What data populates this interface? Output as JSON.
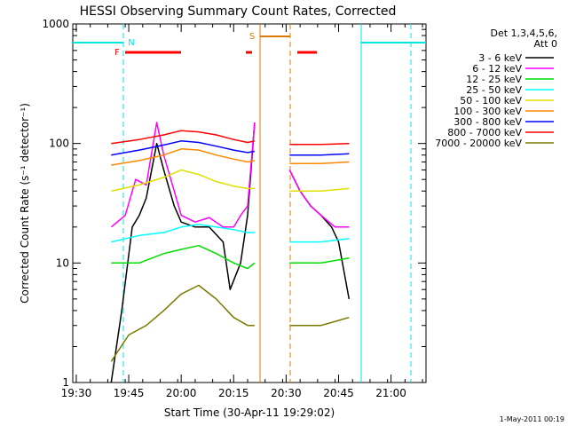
{
  "chart_data": {
    "type": "line",
    "title": "HESSI Observing Summary Count Rates, Corrected",
    "xlabel": "Start Time (30-Apr-11 19:29:02)",
    "ylabel": "Corrected Count Rate (s⁻¹ detector⁻¹)",
    "x_start": "19:29:02",
    "x_range": [
      "19:29",
      "21:10"
    ],
    "x_ticks": [
      "19:30",
      "19:45",
      "20:00",
      "20:15",
      "20:30",
      "20:45",
      "21:00"
    ],
    "y_scale": "log",
    "ylim": [
      1,
      1000
    ],
    "y_ticks": [
      "1",
      "10",
      "100",
      "1000"
    ],
    "footer": "1-May-2011 00:19",
    "legend": {
      "header": [
        "Det 1,3,4,5,6,",
        "Att 0"
      ],
      "position": "right"
    },
    "flags": [
      {
        "label": "N",
        "color": "#00e5e5"
      },
      {
        "label": "F",
        "color": "#ff0000"
      },
      {
        "label": "S",
        "color": "#e07800"
      }
    ],
    "series": [
      {
        "name": "3 - 6 keV",
        "color": "#000000",
        "x": [
          "19:40",
          "19:43",
          "19:46",
          "19:48",
          "19:50",
          "19:53",
          "19:55",
          "19:58",
          "20:00",
          "20:04",
          "20:08",
          "20:12",
          "20:14",
          "20:17",
          "20:19",
          "20:21",
          "20:24",
          "20:31",
          "20:34",
          "20:37",
          "20:40",
          "20:43",
          "20:45",
          "20:48"
        ],
        "y": [
          1,
          4,
          20,
          25,
          35,
          100,
          60,
          30,
          22,
          20,
          20,
          15,
          6,
          10,
          25,
          150,
          null,
          60,
          40,
          30,
          25,
          20,
          15,
          5
        ]
      },
      {
        "name": "6 - 12 keV",
        "color": "#ff00ff",
        "x": [
          "19:40",
          "19:44",
          "19:47",
          "19:50",
          "19:53",
          "19:55",
          "19:58",
          "20:00",
          "20:04",
          "20:08",
          "20:12",
          "20:15",
          "20:17",
          "20:19",
          "20:21",
          "20:24",
          "20:31",
          "20:34",
          "20:37",
          "20:40",
          "20:44",
          "20:48"
        ],
        "y": [
          20,
          25,
          50,
          45,
          150,
          80,
          40,
          25,
          22,
          24,
          20,
          20,
          25,
          30,
          150,
          null,
          60,
          40,
          30,
          25,
          20,
          20
        ]
      },
      {
        "name": "12 - 25 keV",
        "color": "#00dd00",
        "x": [
          "19:40",
          "19:48",
          "19:55",
          "20:00",
          "20:05",
          "20:10",
          "20:15",
          "20:19",
          "20:21",
          "20:24",
          "20:31",
          "20:40",
          "20:48"
        ],
        "y": [
          10,
          10,
          12,
          13,
          14,
          12,
          10,
          9,
          10,
          null,
          10,
          10,
          11
        ]
      },
      {
        "name": "25 - 50 keV",
        "color": "#00ffff",
        "x": [
          "19:40",
          "19:48",
          "19:55",
          "20:00",
          "20:05",
          "20:10",
          "20:15",
          "20:19",
          "20:21",
          "20:24",
          "20:31",
          "20:40",
          "20:48"
        ],
        "y": [
          15,
          17,
          18,
          20,
          21,
          20,
          19,
          18,
          18,
          null,
          15,
          15,
          16
        ]
      },
      {
        "name": "50 - 100 keV",
        "color": "#e0e000",
        "x": [
          "19:40",
          "19:48",
          "19:55",
          "20:00",
          "20:05",
          "20:10",
          "20:15",
          "20:19",
          "20:21",
          "20:24",
          "20:31",
          "20:40",
          "20:48"
        ],
        "y": [
          40,
          45,
          52,
          60,
          55,
          48,
          44,
          42,
          42,
          null,
          40,
          40,
          42
        ]
      },
      {
        "name": "100 - 300 keV",
        "color": "#ff8800",
        "x": [
          "19:40",
          "19:48",
          "19:55",
          "20:00",
          "20:05",
          "20:10",
          "20:15",
          "20:19",
          "20:21",
          "20:24",
          "20:31",
          "20:40",
          "20:48"
        ],
        "y": [
          66,
          72,
          80,
          90,
          88,
          80,
          74,
          70,
          72,
          null,
          68,
          68,
          70
        ]
      },
      {
        "name": "300 - 800 keV",
        "color": "#0000ff",
        "x": [
          "19:40",
          "19:48",
          "19:55",
          "20:00",
          "20:05",
          "20:10",
          "20:15",
          "20:19",
          "20:21",
          "20:24",
          "20:31",
          "20:40",
          "20:48"
        ],
        "y": [
          80,
          88,
          97,
          105,
          102,
          95,
          88,
          84,
          86,
          null,
          80,
          80,
          82
        ]
      },
      {
        "name": "800 - 7000 keV",
        "color": "#ff0000",
        "x": [
          "19:40",
          "19:48",
          "19:55",
          "20:00",
          "20:05",
          "20:10",
          "20:15",
          "20:19",
          "20:21",
          "20:24",
          "20:31",
          "20:40",
          "20:48"
        ],
        "y": [
          100,
          108,
          118,
          128,
          125,
          118,
          108,
          102,
          105,
          null,
          98,
          98,
          100
        ]
      },
      {
        "name": "7000 - 20000 keV",
        "color": "#7a7a00",
        "x": [
          "19:40",
          "19:45",
          "19:50",
          "19:55",
          "20:00",
          "20:05",
          "20:10",
          "20:15",
          "20:19",
          "20:21",
          "20:24",
          "20:31",
          "20:40",
          "20:48"
        ],
        "y": [
          1.5,
          2.5,
          3,
          4,
          5.5,
          6.5,
          5,
          3.5,
          3,
          3,
          null,
          3,
          3,
          3.5
        ]
      }
    ]
  }
}
